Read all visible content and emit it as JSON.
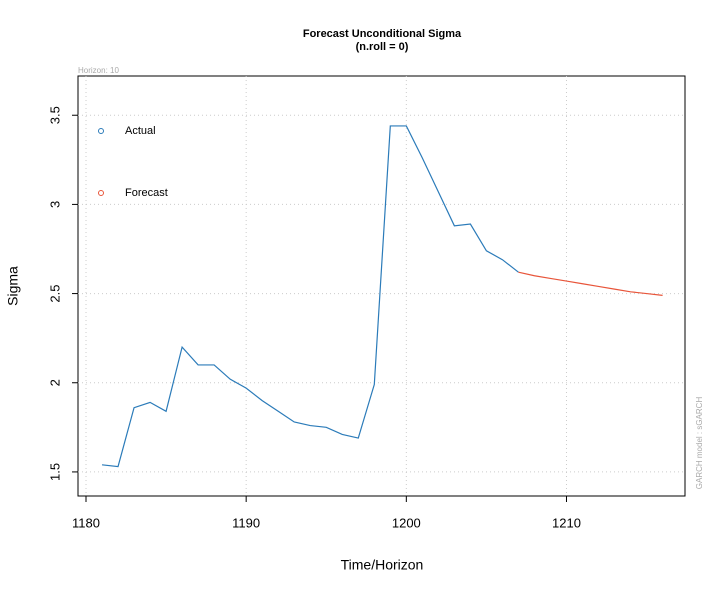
{
  "chart_data": {
    "type": "line",
    "title": "Forecast Unconditional Sigma",
    "subtitle": "(n.roll = 0)",
    "annotation": "Horizon: 10",
    "side_note": "GARCH model : sGARCH",
    "x_label": "Time/Horizon",
    "y_label": "Sigma",
    "x": [
      1181,
      1182,
      1183,
      1184,
      1185,
      1186,
      1187,
      1188,
      1189,
      1190,
      1191,
      1192,
      1193,
      1194,
      1195,
      1196,
      1197,
      1198,
      1199,
      1200,
      1201,
      1202,
      1203,
      1204,
      1205,
      1206,
      1207,
      1208,
      1209,
      1210,
      1211,
      1212,
      1213,
      1214,
      1215,
      1216
    ],
    "series": [
      {
        "name": "Actual",
        "color": "#2b7bb9",
        "values": [
          1.54,
          1.53,
          1.86,
          1.89,
          1.84,
          2.2,
          2.1,
          2.1,
          2.02,
          1.97,
          1.9,
          1.84,
          1.78,
          1.76,
          1.75,
          1.71,
          1.69,
          1.99,
          3.44,
          3.44,
          3.26,
          3.07,
          2.88,
          2.89,
          2.74,
          2.69,
          2.62,
          null,
          null,
          null,
          null,
          null,
          null,
          null,
          null,
          null
        ]
      },
      {
        "name": "Forecast",
        "color": "#e8553a",
        "values": [
          null,
          null,
          null,
          null,
          null,
          null,
          null,
          null,
          null,
          null,
          null,
          null,
          null,
          null,
          null,
          null,
          null,
          null,
          null,
          null,
          null,
          null,
          null,
          null,
          null,
          null,
          2.62,
          2.6,
          2.585,
          2.57,
          2.555,
          2.54,
          2.525,
          2.51,
          2.5,
          2.49
        ]
      }
    ],
    "xlim": [
      1179.5,
      1217.4
    ],
    "ylim": [
      1.365,
      3.72
    ],
    "xticks": [
      1180,
      1190,
      1200,
      1210
    ],
    "yticks": [
      1.5,
      2.0,
      2.5,
      3.0,
      3.5
    ],
    "grid": true,
    "legend": "top-left"
  }
}
